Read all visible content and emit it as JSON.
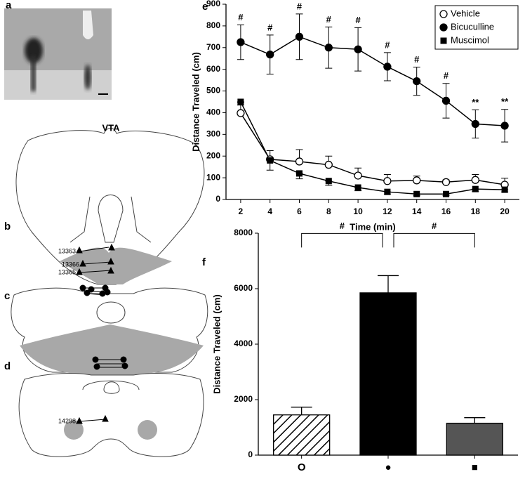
{
  "panel_labels": [
    "a",
    "b",
    "c",
    "d",
    "e",
    "f"
  ],
  "diagram": {
    "title": "VTA",
    "labels": [
      "13363",
      "13366",
      "13365",
      "14298"
    ]
  },
  "chart_data": [
    {
      "type": "line",
      "y_label": "Distance Traveled (cm)",
      "x_label": "Time (min)",
      "x": [
        2,
        4,
        6,
        8,
        10,
        12,
        14,
        16,
        18,
        20
      ],
      "xlim": [
        1,
        21
      ],
      "xticks": [
        2,
        4,
        6,
        8,
        10,
        12,
        14,
        16,
        18,
        20
      ],
      "ylim": [
        0,
        900
      ],
      "yticks": [
        0,
        100,
        200,
        300,
        400,
        500,
        600,
        700,
        800,
        900
      ],
      "legend": "upper right",
      "series": [
        {
          "name": "Vehicle",
          "color": "#000000",
          "marker": "circle-open",
          "values": [
            398,
            185,
            175,
            160,
            110,
            85,
            88,
            80,
            90,
            68
          ],
          "errors": [
            50,
            40,
            55,
            40,
            35,
            30,
            20,
            10,
            25,
            30
          ]
        },
        {
          "name": "Bicuculline",
          "color": "#000000",
          "marker": "circle",
          "values": [
            725,
            668,
            750,
            700,
            692,
            612,
            545,
            455,
            348,
            340
          ],
          "errors": [
            80,
            90,
            105,
            95,
            100,
            65,
            65,
            80,
            65,
            75
          ],
          "annotations": [
            "#",
            "#",
            "#",
            "#",
            "#",
            "#",
            "#",
            "#",
            "**",
            "**"
          ]
        },
        {
          "name": "Muscimol",
          "color": "#000000",
          "marker": "square",
          "values": [
            450,
            180,
            120,
            85,
            55,
            35,
            25,
            25,
            48,
            45
          ],
          "errors": [
            15,
            45,
            25,
            20,
            15,
            10,
            8,
            8,
            12,
            10
          ]
        }
      ]
    },
    {
      "type": "bar",
      "y_label": "Distance Traveled (cm)",
      "categories": [
        "O",
        "●",
        "■"
      ],
      "values": [
        1450,
        5850,
        1150
      ],
      "errors": [
        280,
        620,
        200
      ],
      "fills": [
        "hatch",
        "#000000",
        "#555555"
      ],
      "ylim": [
        0,
        8000
      ],
      "yticks": [
        0,
        2000,
        4000,
        6000,
        8000
      ],
      "annotations": [
        "#",
        "#"
      ]
    }
  ]
}
